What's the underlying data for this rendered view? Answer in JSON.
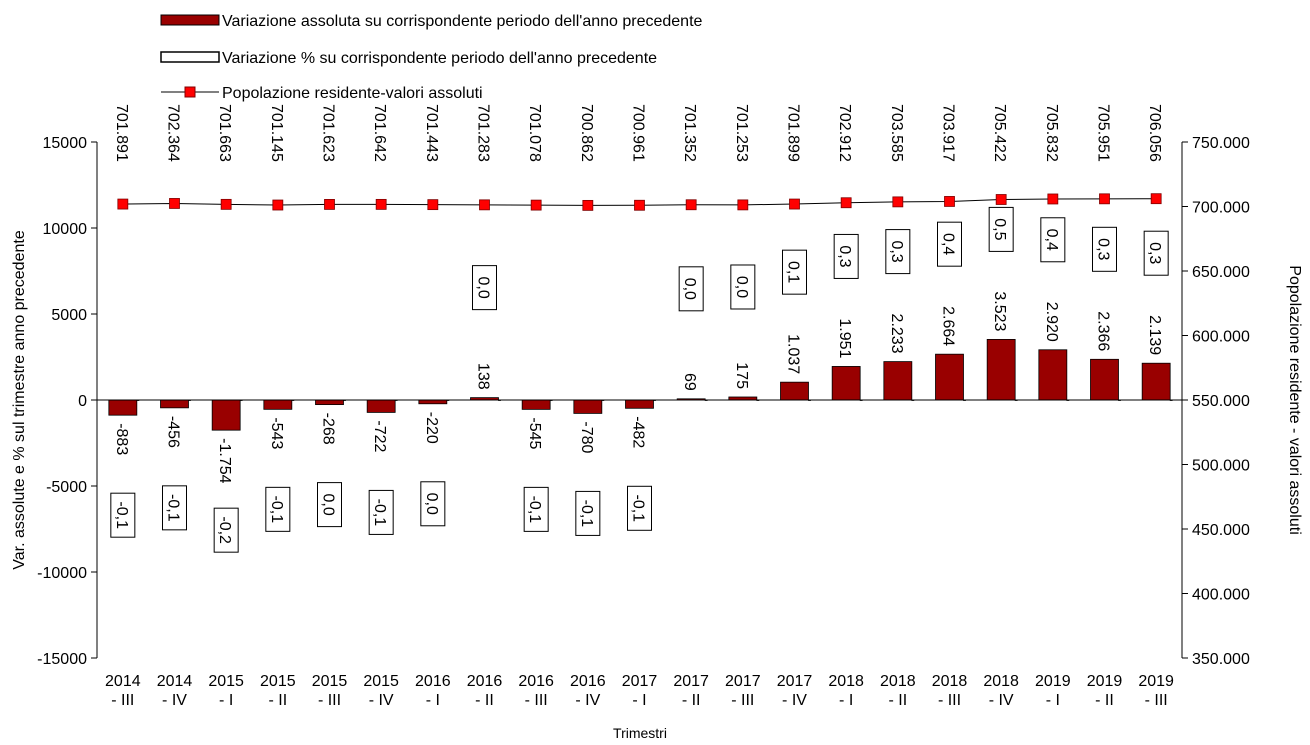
{
  "chart_data": {
    "type": "bar-line",
    "x_label": "Trimestri",
    "y_label": "Var. assolute e % sul trimestre anno precedente",
    "y2_label": "Popolazione residente - valori assoluti",
    "categories": [
      "2014 - III",
      "2014 - IV",
      "2015 - I",
      "2015 - II",
      "2015 - III",
      "2015 - IV",
      "2016 - I",
      "2016 - II",
      "2016 - III",
      "2016 - IV",
      "2017 - I",
      "2017 - II",
      "2017 - III",
      "2017 - IV",
      "2018 - I",
      "2018 - II",
      "2018 - III",
      "2018 - IV",
      "2019 - I",
      "2019 - II",
      "2019 - III"
    ],
    "ylim": [
      -15000,
      15000
    ],
    "yticks": [
      -15000,
      -10000,
      -5000,
      0,
      5000,
      10000,
      15000
    ],
    "y2lim": [
      350000,
      750000
    ],
    "y2ticks": [
      {
        "value": 350000,
        "label": "350.000"
      },
      {
        "value": 400000,
        "label": "400.000"
      },
      {
        "value": 450000,
        "label": "450.000"
      },
      {
        "value": 500000,
        "label": "500.000"
      },
      {
        "value": 550000,
        "label": "550.000"
      },
      {
        "value": 600000,
        "label": "600.000"
      },
      {
        "value": 650000,
        "label": "650.000"
      },
      {
        "value": 700000,
        "label": "700.000"
      },
      {
        "value": 750000,
        "label": "750.000"
      }
    ],
    "legend": "top-left",
    "series": [
      {
        "name": "Variazione assoluta su corrispondente periodo dell'anno precedente",
        "type": "bar",
        "color": "#990000",
        "values": [
          -883,
          -456,
          -1754,
          -543,
          -268,
          -722,
          -220,
          138,
          -545,
          -780,
          -482,
          69,
          175,
          1037,
          1951,
          2233,
          2664,
          3523,
          2920,
          2366,
          2139
        ],
        "value_labels": [
          "-883",
          "-456",
          "-1.754",
          "-543",
          "-268",
          "-722",
          "-220",
          "138",
          "-545",
          "-780",
          "-482",
          "69",
          "175",
          "1.037",
          "1.951",
          "2.233",
          "2.664",
          "3.523",
          "2.920",
          "2.366",
          "2.139"
        ]
      },
      {
        "name": "Variazione % su corrispondente periodo dell'anno precedente",
        "type": "bar",
        "color": "#ffffff",
        "values": [
          -0.1,
          -0.1,
          -0.2,
          -0.1,
          0.0,
          -0.1,
          0.0,
          0.0,
          -0.1,
          -0.1,
          -0.1,
          0.0,
          0.0,
          0.1,
          0.3,
          0.3,
          0.4,
          0.5,
          0.4,
          0.3,
          0.3
        ],
        "value_labels": [
          "-0,1",
          "-0,1",
          "-0,2",
          "-0,1",
          "0,0",
          "-0,1",
          "0,0",
          "0,0",
          "-0,1",
          "-0,1",
          "-0,1",
          "0,0",
          "0,0",
          "0,1",
          "0,3",
          "0,3",
          "0,4",
          "0,5",
          "0,4",
          "0,3",
          "0,3"
        ]
      },
      {
        "name": "Popolazione residente-valori assoluti",
        "type": "line",
        "axis": "y2",
        "color": "#ff0000",
        "values": [
          701891,
          702364,
          701663,
          701145,
          701623,
          701642,
          701443,
          701283,
          701078,
          700862,
          700961,
          701352,
          701253,
          701899,
          702912,
          703585,
          703917,
          705422,
          705832,
          705951,
          706056
        ],
        "value_labels": [
          "701.891",
          "702.364",
          "701.663",
          "701.145",
          "701.623",
          "701.642",
          "701.443",
          "701.283",
          "701.078",
          "700.862",
          "700.961",
          "701.352",
          "701.253",
          "701.899",
          "702.912",
          "703.585",
          "703.917",
          "705.422",
          "705.832",
          "705.951",
          "706.056"
        ]
      }
    ]
  }
}
